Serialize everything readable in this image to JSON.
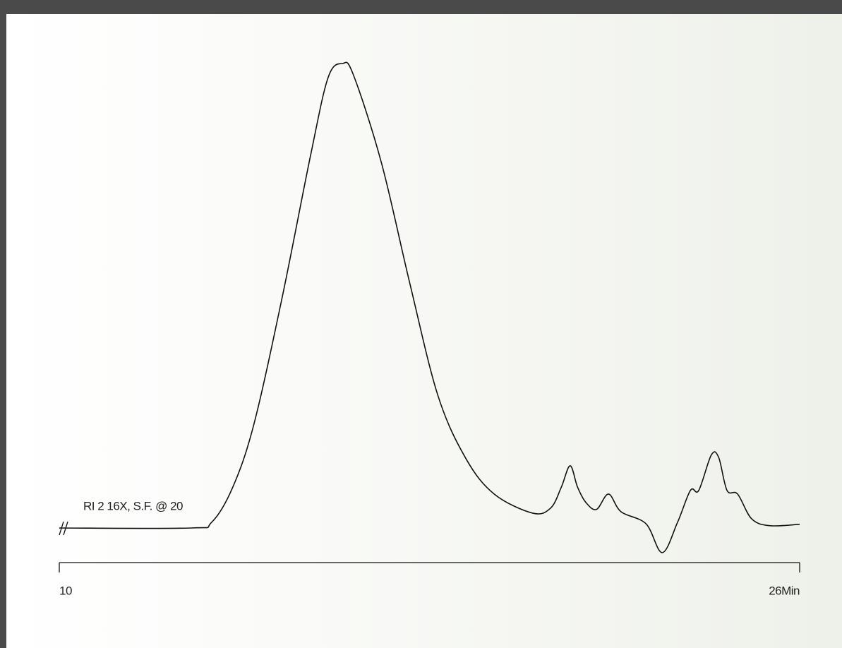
{
  "chart_data": {
    "type": "line",
    "annotations": [
      "RI 2 16X, S.F. @ 20"
    ],
    "x": [
      10,
      12.84,
      13.29,
      13.75,
      14.21,
      14.82,
      15.43,
      15.81,
      16.12,
      16.35,
      16.96,
      17.57,
      18.18,
      18.79,
      19.4,
      20.23,
      20.62,
      20.85,
      21.04,
      21.2,
      21.38,
      21.61,
      21.87,
      22.14,
      22.68,
      23.03,
      23.36,
      23.64,
      23.82,
      24.09,
      24.25,
      24.43,
      24.66,
      24.96,
      25.35,
      26
    ],
    "series": [
      {
        "color": "#111111",
        "values": [
          0,
          0,
          1.2,
          8.8,
          22.5,
          49.8,
          80.2,
          97,
          100,
          97.7,
          78.7,
          52.9,
          28.6,
          14.9,
          7.3,
          3.2,
          4.3,
          8.8,
          13.4,
          8.8,
          5.5,
          4.0,
          7.3,
          3.5,
          0.9,
          -5.3,
          1.2,
          8.1,
          8.1,
          15.7,
          15.2,
          8.1,
          7.3,
          2.0,
          0.5,
          0.8
        ]
      }
    ],
    "xlim": [
      10,
      26
    ],
    "xticks": [
      10,
      {
        "value": 26,
        "label": "26Min"
      }
    ],
    "ylim": [
      -10,
      105
    ]
  }
}
